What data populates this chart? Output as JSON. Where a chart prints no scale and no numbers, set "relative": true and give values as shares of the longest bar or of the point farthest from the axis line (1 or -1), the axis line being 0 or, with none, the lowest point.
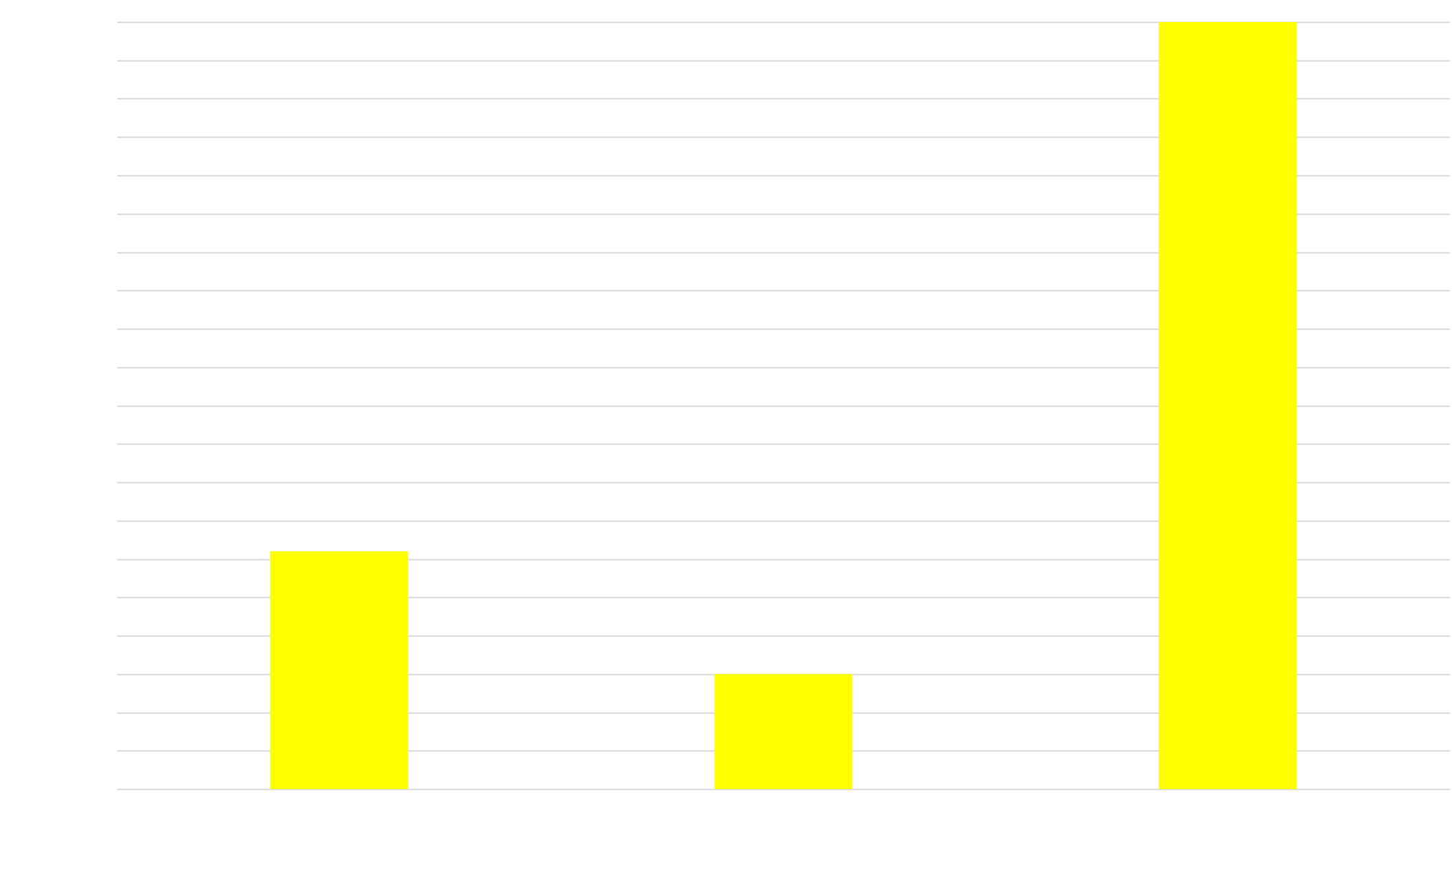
{
  "chart_data": {
    "type": "bar",
    "relative": true,
    "categories": [
      null,
      null,
      null
    ],
    "values": [
      0.31,
      0.15,
      1
    ],
    "color": "#ffff00",
    "grid": "y"
  }
}
